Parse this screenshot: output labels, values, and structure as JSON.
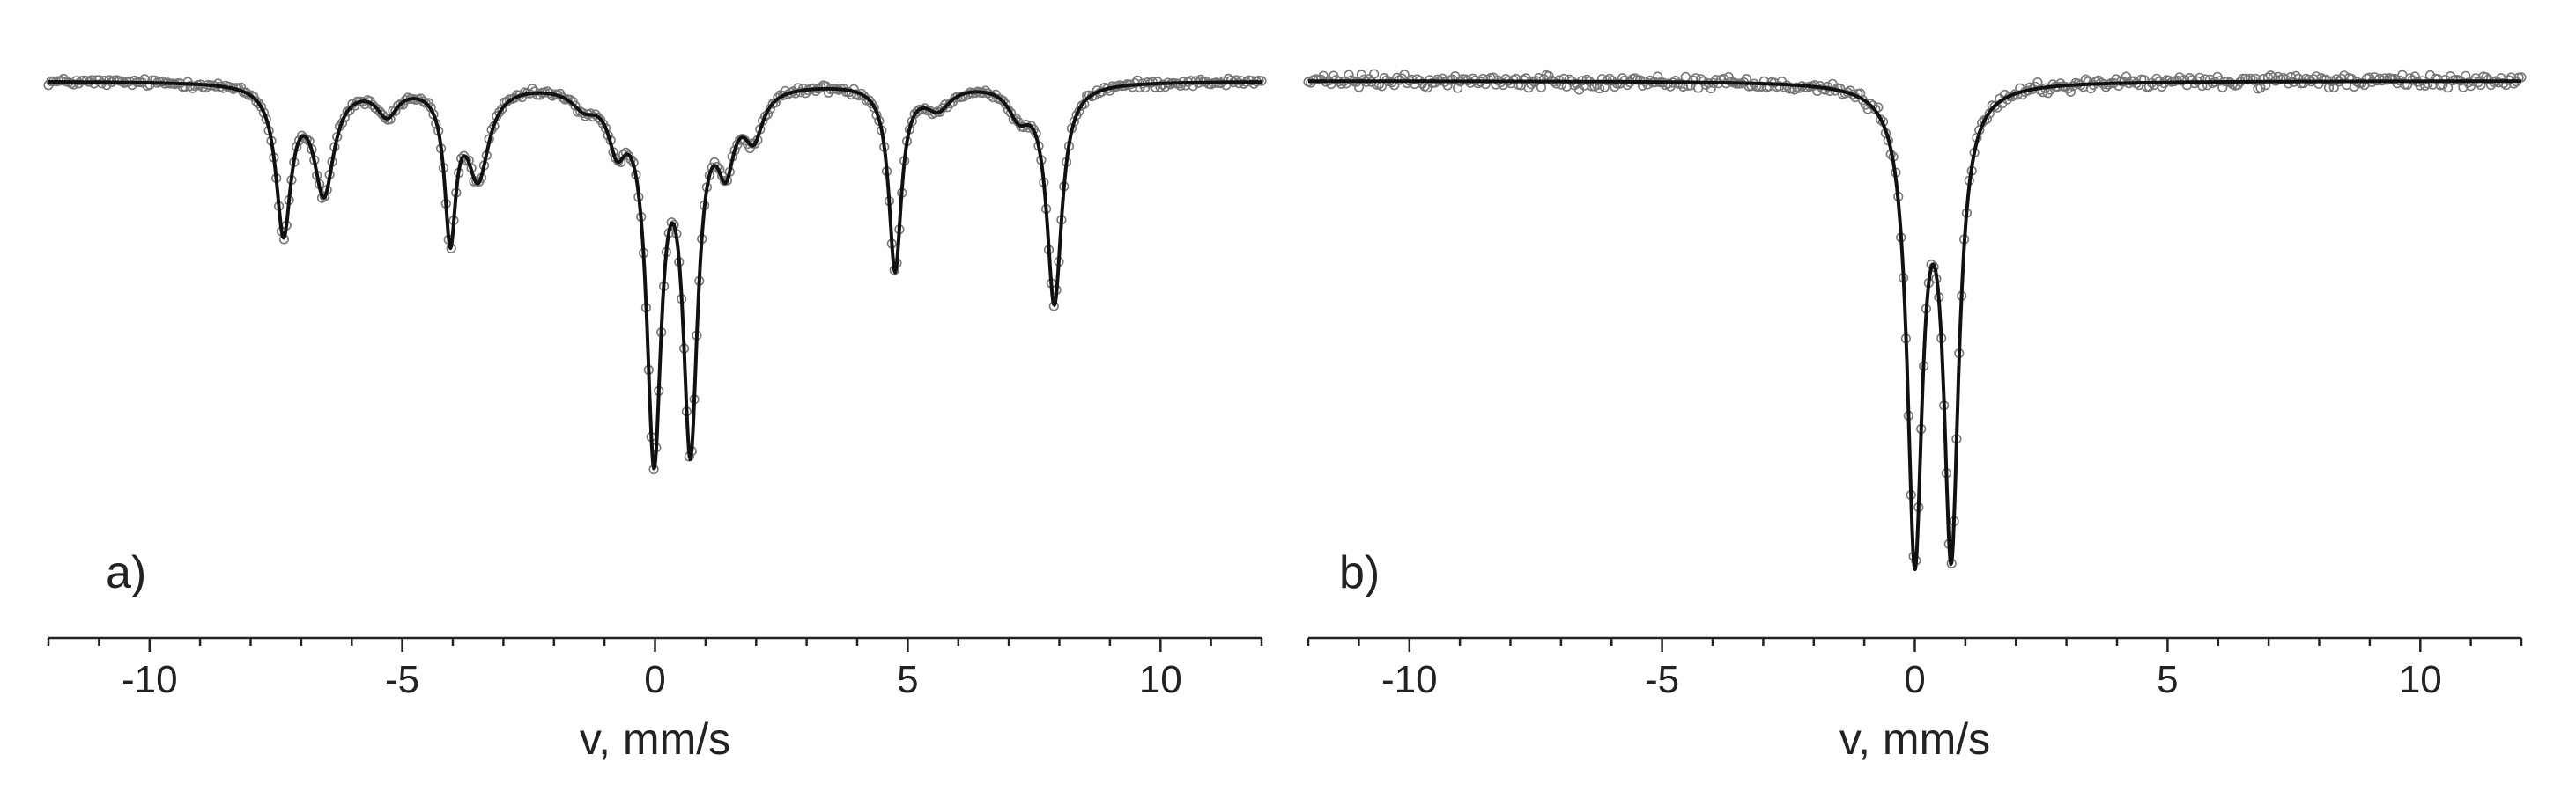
{
  "chart_data": [
    {
      "type": "scatter",
      "panel_label": "a)",
      "xlabel": "v, mm/s",
      "ylabel": "",
      "xlim": [
        -12,
        12
      ],
      "ylim": [
        0,
        1
      ],
      "y_axis_visible": false,
      "grid": false,
      "x_ticks": [
        -10,
        -5,
        0,
        5,
        10
      ],
      "x_tick_labels": [
        "-10",
        "-5",
        "0",
        "5",
        "10"
      ],
      "series": [
        {
          "kind": "points",
          "marker": "open-circle",
          "color": "#777777"
        },
        {
          "kind": "fit-line",
          "color": "#111111",
          "baseline": 0.95,
          "components": [
            {
              "center": -7.35,
              "depth": 0.26,
              "width": 0.36
            },
            {
              "center": -6.55,
              "depth": 0.19,
              "width": 0.48
            },
            {
              "center": -5.3,
              "depth": 0.05,
              "width": 0.5
            },
            {
              "center": -4.05,
              "depth": 0.26,
              "width": 0.27
            },
            {
              "center": -3.5,
              "depth": 0.16,
              "width": 0.52
            },
            {
              "center": -1.4,
              "depth": 0.03,
              "width": 0.6
            },
            {
              "center": -0.75,
              "depth": 0.09,
              "width": 0.42
            },
            {
              "center": -0.02,
              "depth": 0.64,
              "width": 0.35
            },
            {
              "center": 0.7,
              "depth": 0.62,
              "width": 0.35
            },
            {
              "center": 1.4,
              "depth": 0.12,
              "width": 0.4
            },
            {
              "center": 1.95,
              "depth": 0.08,
              "width": 0.45
            },
            {
              "center": 4.75,
              "depth": 0.33,
              "width": 0.3
            },
            {
              "center": 5.6,
              "depth": 0.04,
              "width": 0.6
            },
            {
              "center": 7.9,
              "depth": 0.39,
              "width": 0.36
            },
            {
              "center": 7.2,
              "depth": 0.05,
              "width": 0.5
            }
          ]
        }
      ]
    },
    {
      "type": "scatter",
      "panel_label": "b)",
      "xlabel": "v, mm/s",
      "ylabel": "",
      "xlim": [
        -12,
        12
      ],
      "ylim": [
        0,
        1
      ],
      "y_axis_visible": false,
      "grid": false,
      "x_ticks": [
        -10,
        -5,
        0,
        5,
        10
      ],
      "x_tick_labels": [
        "-10",
        "-5",
        "0",
        "5",
        "10"
      ],
      "series": [
        {
          "kind": "points",
          "marker": "open-circle",
          "color": "#777777"
        },
        {
          "kind": "fit-line",
          "color": "#111111",
          "baseline": 0.95,
          "components": [
            {
              "center": 0.0,
              "depth": 0.82,
              "width": 0.36
            },
            {
              "center": 0.72,
              "depth": 0.81,
              "width": 0.36
            }
          ]
        }
      ]
    }
  ]
}
